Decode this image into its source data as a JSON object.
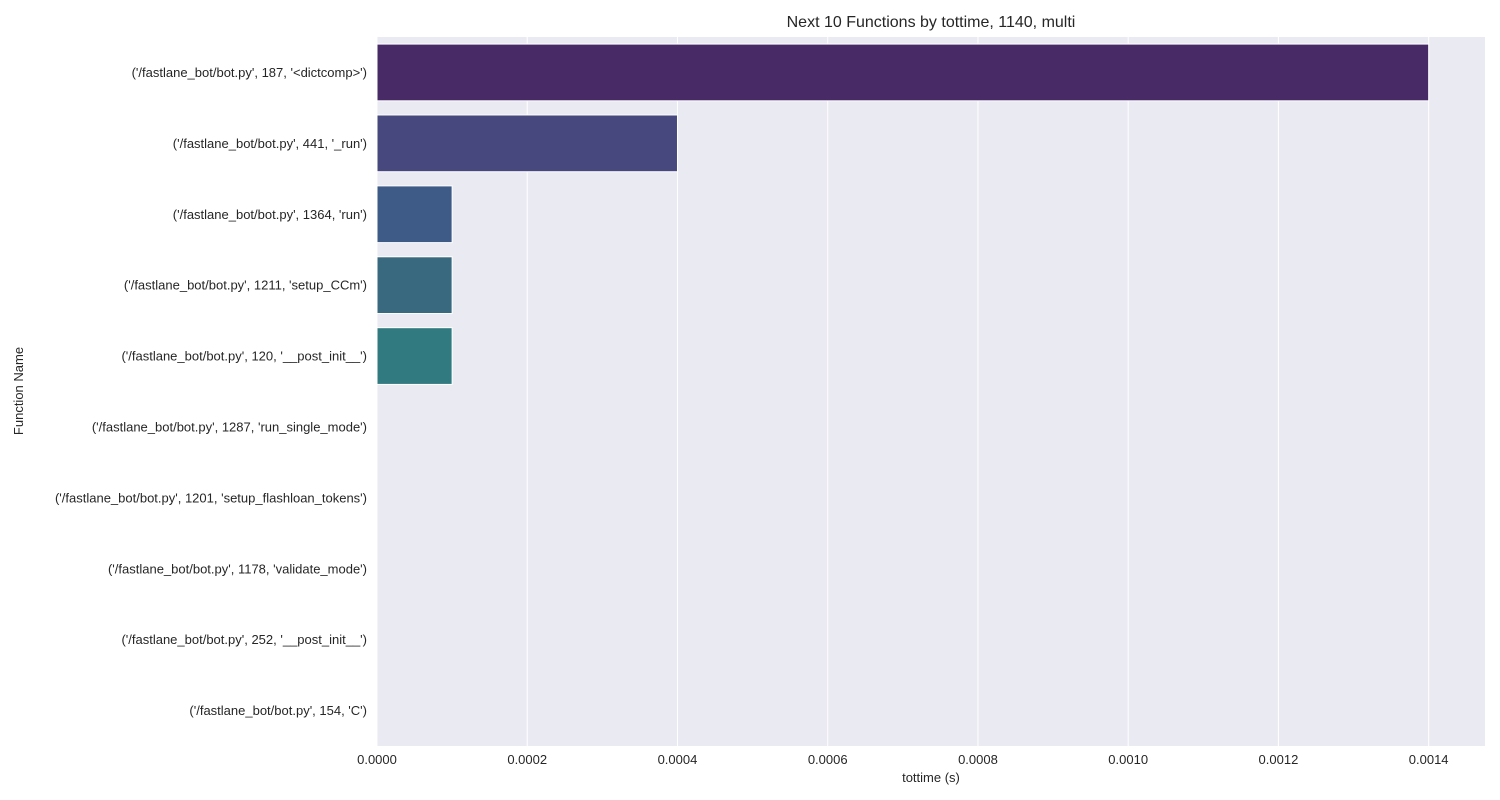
{
  "chart_data": {
    "type": "bar",
    "orientation": "horizontal",
    "title": "Next 10 Functions by tottime, 1140, multi",
    "xlabel": "tottime (s)",
    "ylabel": "Function Name",
    "xlim": [
      0,
      0.001475
    ],
    "xticks": [
      "0.0000",
      "0.0002",
      "0.0004",
      "0.0006",
      "0.0008",
      "0.0010",
      "0.0012",
      "0.0014"
    ],
    "xtick_values": [
      0,
      0.0002,
      0.0004,
      0.0006,
      0.0008,
      0.001,
      0.0012,
      0.0014
    ],
    "grid": true,
    "categories": [
      "('/fastlane_bot/bot.py', 187, '<dictcomp>')",
      "('/fastlane_bot/bot.py', 441, '_run')",
      "('/fastlane_bot/bot.py', 1364, 'run')",
      "('/fastlane_bot/bot.py', 1211, 'setup_CCm')",
      "('/fastlane_bot/bot.py', 120, '__post_init__')",
      "('/fastlane_bot/bot.py', 1287, 'run_single_mode')",
      "('/fastlane_bot/bot.py', 1201, 'setup_flashloan_tokens')",
      "('/fastlane_bot/bot.py', 1178, 'validate_mode')",
      "('/fastlane_bot/bot.py', 252, '__post_init__')",
      "('/fastlane_bot/bot.py', 154, 'C')"
    ],
    "values": [
      0.0014,
      0.0004,
      0.0001,
      0.0001,
      0.0001,
      0,
      0,
      0,
      0,
      0
    ],
    "colors": [
      "#472a66",
      "#46487e",
      "#3e5a87",
      "#38697f",
      "#307a80",
      "#2a8983",
      "#24978a",
      "#2ea587",
      "#45b27c",
      "#62bf6c"
    ],
    "background": "#eaeaf2",
    "grid_color": "#ffffff"
  }
}
